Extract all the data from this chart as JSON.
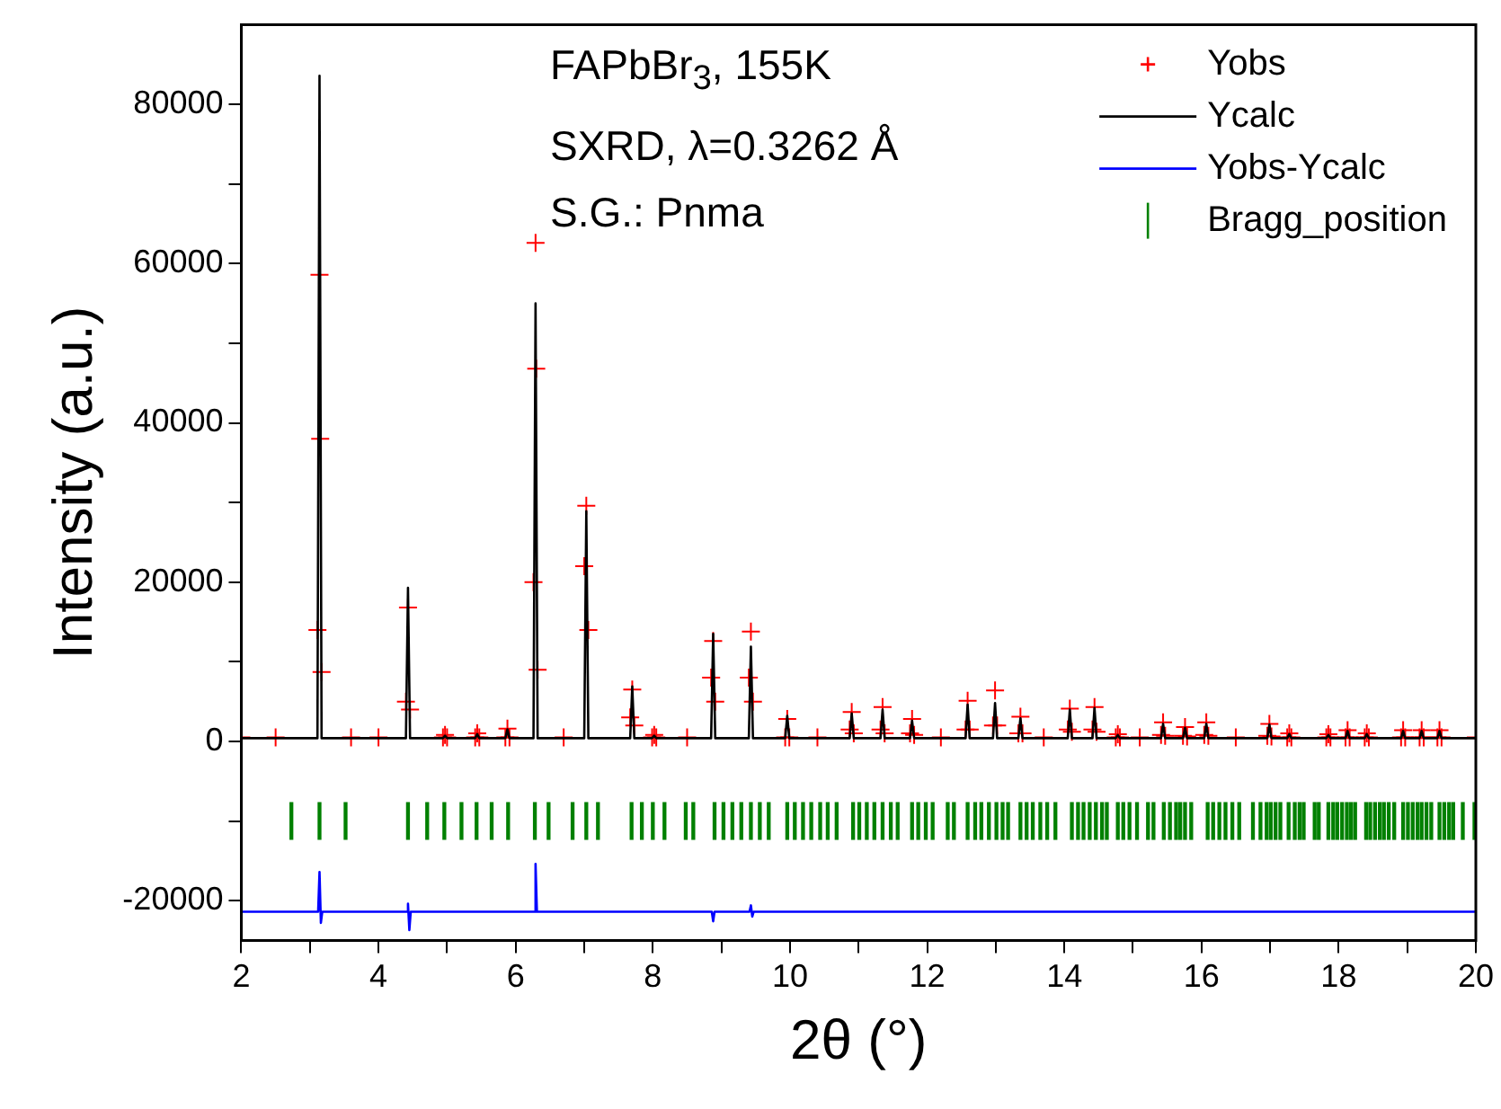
{
  "chart_data": {
    "type": "line",
    "xlabel": "2θ (°)",
    "ylabel": "Intensity (a.u.)",
    "annotations": [
      "FAPbBr$_{3}$, 155K",
      "SXRD, λ=0.3262 Å",
      "S.G.: Pnma"
    ],
    "xlim": [
      2,
      20
    ],
    "xticks": [
      2,
      {
        "value": 3,
        "label": null
      },
      4,
      {
        "value": 5,
        "label": null
      },
      6,
      {
        "value": 7,
        "label": null
      },
      8,
      {
        "value": 9,
        "label": null
      },
      10,
      {
        "value": 11,
        "label": null
      },
      12,
      {
        "value": 13,
        "label": null
      },
      14,
      {
        "value": 15,
        "label": null
      },
      16,
      {
        "value": 17,
        "label": null
      },
      18,
      {
        "value": 19,
        "label": null
      },
      20
    ],
    "ylim": [
      -25000,
      90000
    ],
    "yticks": [
      -20000,
      {
        "value": -10000,
        "label": null
      },
      0,
      {
        "value": 10000,
        "label": null
      },
      20000,
      {
        "value": 30000,
        "label": null
      },
      40000,
      {
        "value": 50000,
        "label": null
      },
      60000,
      {
        "value": 70000,
        "label": null
      },
      80000
    ],
    "grid": false,
    "legend": "top right",
    "series": [
      {
        "name": "Yobs",
        "type": "scatter",
        "marker": "cross",
        "color": "#ff0000",
        "x": [
          2,
          2.5,
          3.11,
          3.14,
          3.15,
          3.17,
          3.6,
          4.0,
          4.4,
          4.43,
          4.46,
          4.94,
          4.97,
          5.0,
          5.41,
          5.44,
          5.47,
          5.85,
          5.88,
          5.91,
          6.26,
          6.29,
          6.3,
          6.32,
          6.7,
          7.0,
          7.03,
          7.06,
          7.67,
          7.7,
          7.73,
          7.99,
          8.02,
          8.05,
          8.5,
          8.85,
          8.88,
          8.91,
          9.4,
          9.43,
          9.46,
          9.93,
          9.96,
          9.99,
          10.4,
          10.87,
          10.9,
          10.93,
          11.32,
          11.35,
          11.38,
          11.75,
          11.78,
          11.81,
          12.2,
          12.56,
          12.59,
          12.62,
          12.96,
          12.99,
          13.02,
          13.33,
          13.36,
          13.39,
          13.7,
          14.05,
          14.08,
          14.11,
          14.41,
          14.44,
          14.47,
          14.75,
          14.78,
          14.81,
          15.1,
          15.41,
          15.44,
          15.47,
          15.73,
          15.76,
          15.79,
          16.04,
          16.07,
          16.1,
          16.5,
          16.96,
          16.99,
          17.02,
          17.25,
          17.28,
          17.31,
          17.82,
          17.85,
          17.88,
          18.1,
          18.13,
          18.16,
          18.38,
          18.41,
          18.44,
          18.91,
          18.94,
          18.97,
          19.18,
          19.21,
          19.24,
          19.44,
          19.47,
          19.5,
          20
        ],
        "values": [
          500,
          500,
          14000,
          58600,
          38000,
          8700,
          500,
          500,
          5000,
          16800,
          4000,
          500,
          800,
          500,
          500,
          1000,
          500,
          500,
          1600,
          500,
          20000,
          62600,
          46800,
          9000,
          500,
          22000,
          29600,
          14000,
          3000,
          6500,
          2000,
          500,
          800,
          500,
          500,
          8000,
          12600,
          5000,
          8000,
          13800,
          5000,
          500,
          2800,
          500,
          500,
          1500,
          3700,
          1000,
          1500,
          4300,
          1000,
          1000,
          2800,
          800,
          500,
          1500,
          5100,
          1500,
          2000,
          6400,
          2000,
          1000,
          3100,
          1000,
          500,
          1500,
          4100,
          1200,
          1500,
          4300,
          1200,
          500,
          900,
          500,
          500,
          800,
          2400,
          700,
          700,
          1800,
          600,
          800,
          2400,
          700,
          500,
          700,
          2200,
          600,
          500,
          1000,
          500,
          500,
          900,
          500,
          500,
          1400,
          500,
          500,
          1000,
          500,
          500,
          1400,
          500,
          500,
          1400,
          500,
          500,
          1400,
          500,
          500
        ]
      },
      {
        "name": "Ycalc",
        "marker": "none",
        "color": "#000000",
        "x": [
          2,
          2.5,
          3.11,
          3.14,
          3.17,
          3.6,
          4.0,
          4.4,
          4.43,
          4.46,
          4.94,
          4.97,
          5.0,
          5.41,
          5.44,
          5.47,
          5.85,
          5.88,
          5.91,
          6.26,
          6.29,
          6.32,
          6.7,
          7.0,
          7.03,
          7.06,
          7.67,
          7.7,
          7.73,
          7.99,
          8.02,
          8.05,
          8.5,
          8.85,
          8.88,
          8.91,
          9.4,
          9.43,
          9.46,
          9.93,
          9.96,
          9.99,
          10.4,
          10.87,
          10.9,
          10.93,
          11.32,
          11.35,
          11.38,
          11.75,
          11.78,
          11.81,
          12.2,
          12.56,
          12.59,
          12.62,
          12.96,
          12.99,
          13.02,
          13.33,
          13.36,
          13.39,
          13.7,
          14.05,
          14.08,
          14.11,
          14.41,
          14.44,
          14.47,
          14.75,
          14.78,
          14.81,
          15.1,
          15.41,
          15.44,
          15.47,
          15.73,
          15.76,
          15.79,
          16.04,
          16.07,
          16.1,
          16.5,
          16.96,
          16.99,
          17.02,
          17.25,
          17.28,
          17.31,
          17.82,
          17.85,
          17.88,
          18.1,
          18.13,
          18.16,
          18.38,
          18.41,
          18.44,
          18.91,
          18.94,
          18.97,
          19.18,
          19.21,
          19.24,
          19.44,
          19.47,
          19.5,
          20
        ],
        "values": [
          400,
          400,
          400,
          83600,
          400,
          400,
          400,
          400,
          19300,
          400,
          400,
          700,
          400,
          400,
          900,
          400,
          400,
          1500,
          400,
          400,
          55000,
          400,
          400,
          400,
          28900,
          400,
          400,
          6900,
          400,
          400,
          700,
          400,
          400,
          400,
          13500,
          400,
          400,
          11900,
          400,
          400,
          3200,
          400,
          400,
          400,
          3500,
          400,
          400,
          4000,
          400,
          400,
          2600,
          400,
          400,
          400,
          4600,
          400,
          400,
          4800,
          400,
          400,
          2900,
          400,
          400,
          400,
          4000,
          400,
          400,
          4200,
          400,
          400,
          800,
          400,
          400,
          400,
          2200,
          400,
          400,
          1700,
          400,
          400,
          2200,
          400,
          400,
          400,
          2100,
          400,
          400,
          900,
          400,
          400,
          800,
          400,
          400,
          1300,
          400,
          400,
          900,
          400,
          400,
          1300,
          400,
          400,
          1300,
          400,
          400,
          1300,
          400,
          400
        ]
      },
      {
        "name": "Yobs-Ycalc",
        "marker": "none",
        "color": "#0000ff",
        "x": [
          2,
          3.12,
          3.14,
          3.16,
          3.18,
          4.41,
          4.43,
          4.45,
          4.47,
          6.27,
          6.29,
          6.31,
          8.86,
          8.88,
          8.9,
          9.41,
          9.43,
          9.45,
          9.47,
          20
        ],
        "values": [
          -21400,
          -21400,
          -16400,
          -22800,
          -21400,
          -21400,
          -20400,
          -23700,
          -21400,
          -21400,
          -15400,
          -21400,
          -21400,
          -22600,
          -21400,
          -21400,
          -20600,
          -22000,
          -21400,
          -21400
        ]
      },
      {
        "name": "Bragg_position",
        "type": "bar",
        "color": "#008000",
        "base": [
          -12300,
          -12300,
          -12300,
          -12300,
          -12300,
          -12300,
          -12300,
          -12300,
          -12300,
          -12300,
          -12300,
          -12300,
          -12300,
          -12300,
          -12300,
          -12300,
          -12300,
          -12300,
          -12300,
          -12300,
          -12300,
          -12300,
          -12300,
          -12300,
          -12300,
          -12300,
          -12300,
          -12300,
          -12300,
          -12300,
          -12300,
          -12300,
          -12300,
          -12300,
          -12300,
          -12300,
          -12300,
          -12300,
          -12300,
          -12300,
          -12300,
          -12300,
          -12300,
          -12300,
          -12300,
          -12300,
          -12300,
          -12300,
          -12300,
          -12300,
          -12300,
          -12300,
          -12300,
          -12300,
          -12300,
          -12300,
          -12300,
          -12300,
          -12300,
          -12300,
          -12300,
          -12300,
          -12300,
          -12300,
          -12300,
          -12300,
          -12300,
          -12300,
          -12300,
          -12300,
          -12300,
          -12300,
          -12300,
          -12300,
          -12300,
          -12300,
          -12300,
          -12300,
          -12300,
          -12300,
          -12300,
          -12300,
          -12300,
          -12300,
          -12300,
          -12300,
          -12300,
          -12300,
          -12300,
          -12300,
          -12300,
          -12300,
          -12300,
          -12300,
          -12300,
          -12300,
          -12300,
          -12300,
          -12300,
          -12300,
          -12300,
          -12300,
          -12300,
          -12300,
          -12300,
          -12300,
          -12300,
          -12300,
          -12300,
          -12300,
          -12300,
          -12300,
          -12300,
          -12300,
          -12300,
          -12300,
          -12300,
          -12300,
          -12300,
          -12300,
          -12300,
          -12300,
          -12300,
          -12300,
          -12300
        ],
        "x": [
          2.73,
          3.14,
          3.52,
          4.43,
          4.71,
          4.96,
          5.21,
          5.43,
          5.65,
          5.89,
          6.28,
          6.48,
          6.83,
          7.03,
          7.2,
          7.69,
          7.84,
          8.0,
          8.17,
          8.48,
          8.59,
          8.9,
          9.03,
          9.16,
          9.29,
          9.43,
          9.56,
          9.69,
          9.96,
          10.07,
          10.19,
          10.31,
          10.44,
          10.55,
          10.68,
          10.92,
          11.01,
          11.12,
          11.23,
          11.35,
          11.47,
          11.57,
          11.78,
          11.87,
          11.98,
          12.08,
          12.3,
          12.39,
          12.59,
          12.7,
          12.79,
          12.9,
          13.01,
          13.1,
          13.18,
          13.36,
          13.45,
          13.54,
          13.65,
          13.75,
          13.87,
          14.11,
          14.2,
          14.28,
          14.37,
          14.46,
          14.55,
          14.62,
          14.78,
          14.86,
          14.95,
          15.06,
          15.22,
          15.3,
          15.45,
          15.54,
          15.63,
          15.69,
          15.76,
          15.85,
          16.09,
          16.17,
          16.26,
          16.35,
          16.45,
          16.55,
          16.75,
          16.86,
          16.95,
          17.01,
          17.08,
          17.15,
          17.27,
          17.36,
          17.43,
          17.49,
          17.65,
          17.71,
          17.85,
          17.92,
          17.98,
          18.05,
          18.12,
          18.18,
          18.24,
          18.4,
          18.46,
          18.53,
          18.6,
          18.66,
          18.73,
          18.81,
          18.94,
          19.01,
          19.08,
          19.15,
          19.21,
          19.28,
          19.35,
          19.47,
          19.54,
          19.61,
          19.67,
          19.81,
          19.98
        ],
        "values": [
          4600,
          4600,
          4600,
          4600,
          4600,
          4600,
          4600,
          4600,
          4600,
          4600,
          4600,
          4600,
          4600,
          4600,
          4600,
          4600,
          4600,
          4600,
          4600,
          4600,
          4600,
          4600,
          4600,
          4600,
          4600,
          4600,
          4600,
          4600,
          4600,
          4600,
          4600,
          4600,
          4600,
          4600,
          4600,
          4600,
          4600,
          4600,
          4600,
          4600,
          4600,
          4600,
          4600,
          4600,
          4600,
          4600,
          4600,
          4600,
          4600,
          4600,
          4600,
          4600,
          4600,
          4600,
          4600,
          4600,
          4600,
          4600,
          4600,
          4600,
          4600,
          4600,
          4600,
          4600,
          4600,
          4600,
          4600,
          4600,
          4600,
          4600,
          4600,
          4600,
          4600,
          4600,
          4600,
          4600,
          4600,
          4600,
          4600,
          4600,
          4600,
          4600,
          4600,
          4600,
          4600,
          4600,
          4600,
          4600,
          4600,
          4600,
          4600,
          4600,
          4600,
          4600,
          4600,
          4600,
          4600,
          4600,
          4600,
          4600,
          4600,
          4600,
          4600,
          4600,
          4600,
          4600,
          4600,
          4600,
          4600,
          4600,
          4600,
          4600,
          4600,
          4600,
          4600,
          4600,
          4600,
          4600,
          4600,
          4600,
          4600,
          4600,
          4600,
          4600,
          4600
        ]
      }
    ]
  }
}
